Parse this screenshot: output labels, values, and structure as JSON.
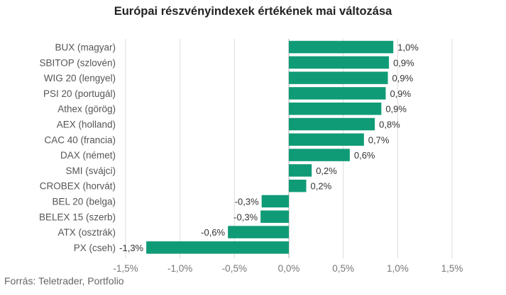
{
  "chart_data": {
    "type": "bar",
    "orientation": "horizontal",
    "title": "Európai részvényindexek értékének mai változása",
    "categories": [
      "BUX (magyar)",
      "SBITOP (szlovén)",
      "WIG 20 (lengyel)",
      "PSI 20 (portugál)",
      "Athex (görög)",
      "AEX (holland)",
      "CAC 40 (francia)",
      "DAX (német)",
      "SMI (svájci)",
      "CROBEX (horvát)",
      "BEL 20 (belga)",
      "BELEX 15 (szerb)",
      "ATX (osztrák)",
      "PX (cseh)"
    ],
    "values": [
      0.96,
      0.92,
      0.91,
      0.89,
      0.85,
      0.79,
      0.69,
      0.56,
      0.21,
      0.16,
      -0.25,
      -0.26,
      -0.56,
      -1.31
    ],
    "value_labels": [
      "1,0%",
      "0,9%",
      "0,9%",
      "0,9%",
      "0,9%",
      "0,8%",
      "0,7%",
      "0,6%",
      "0,2%",
      "0,2%",
      "-0,3%",
      "-0,3%",
      "-0,6%",
      "-1,3%"
    ],
    "xlim": [
      -1.5,
      1.5
    ],
    "xticks": [
      -1.5,
      -1.0,
      -0.5,
      0.0,
      0.5,
      1.0,
      1.5
    ],
    "xtick_labels": [
      "-1,5%",
      "-1,0%",
      "-0,5%",
      "0,0%",
      "0,5%",
      "1,0%",
      "1,5%"
    ],
    "grid": true,
    "bar_color": "#0f9b76"
  },
  "source": "Forrás: Teletrader, Portfolio"
}
